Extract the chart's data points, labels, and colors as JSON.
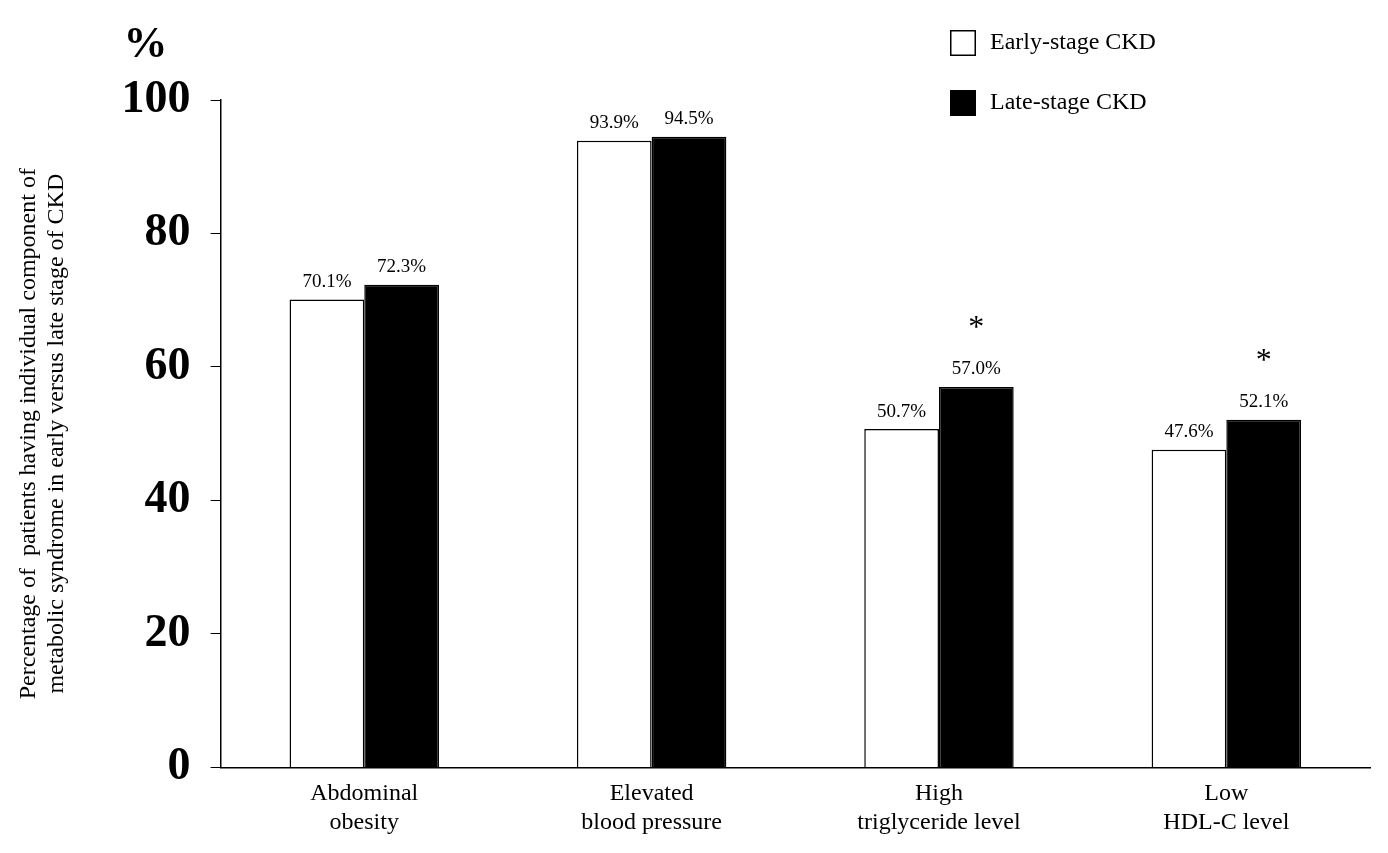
{
  "chart_data": {
    "type": "bar",
    "ylabel": "Percentage of  patients having individual component of\nmetabolic syndrome in early versus late stage of CKD",
    "categories": [
      "Abdominal\nobesity",
      "Elevated\nblood pressure",
      "High\ntriglyceride level",
      "Low\nHDL-C level"
    ],
    "series": [
      {
        "name": "Early-stage CKD",
        "color": "#ffffff",
        "values": [
          70.1,
          93.9,
          50.7,
          47.6
        ],
        "value_labels": [
          "70.1%",
          "93.9%",
          "50.7%",
          "47.6%"
        ]
      },
      {
        "name": "Late-stage CKD",
        "color": "#000000",
        "values": [
          72.3,
          94.5,
          57.0,
          52.1
        ],
        "value_labels": [
          "72.3%",
          "94.5%",
          "57.0%",
          "52.1%"
        ]
      }
    ],
    "ylim": [
      0,
      100
    ],
    "yticks": [
      0,
      20,
      40,
      60,
      80,
      100
    ],
    "grid": false,
    "legend": "top right",
    "annotations": [
      "%",
      "*",
      "*"
    ]
  }
}
